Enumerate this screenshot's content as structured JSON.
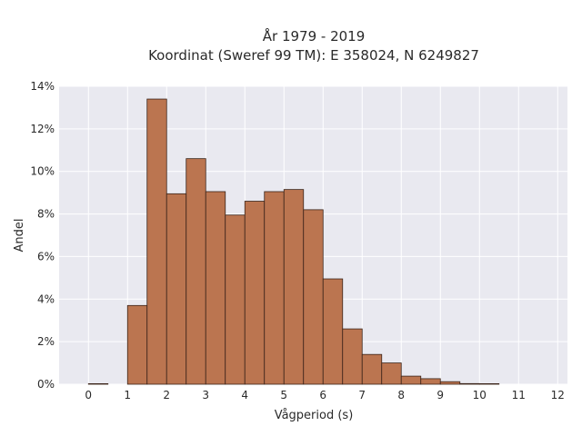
{
  "chart_data": {
    "type": "bar",
    "title_line1": "År 1979 - 2019",
    "title_line2": "Koordinat (Sweref 99 TM): E 358024, N 6249827",
    "xlabel": "Vågperiod (s)",
    "ylabel": "Andel",
    "xlim": [
      -0.75,
      12.25
    ],
    "ylim": [
      0,
      14
    ],
    "x_ticks": [
      0,
      1,
      2,
      3,
      4,
      5,
      6,
      7,
      8,
      9,
      10,
      11,
      12
    ],
    "x_tick_labels": [
      "0",
      "1",
      "2",
      "3",
      "4",
      "5",
      "6",
      "7",
      "8",
      "9",
      "10",
      "11",
      "12"
    ],
    "y_ticks": [
      0,
      2,
      4,
      6,
      8,
      10,
      12,
      14
    ],
    "y_tick_labels": [
      "0%",
      "2%",
      "4%",
      "6%",
      "8%",
      "10%",
      "12%",
      "14%"
    ],
    "bin_width": 0.5,
    "bins": [
      {
        "x0": 0.0,
        "value": 0.02
      },
      {
        "x0": 0.5,
        "value": 0.0
      },
      {
        "x0": 1.0,
        "value": 3.7
      },
      {
        "x0": 1.5,
        "value": 13.4
      },
      {
        "x0": 2.0,
        "value": 8.95
      },
      {
        "x0": 2.5,
        "value": 10.6
      },
      {
        "x0": 3.0,
        "value": 9.05
      },
      {
        "x0": 3.5,
        "value": 7.95
      },
      {
        "x0": 4.0,
        "value": 8.6
      },
      {
        "x0": 4.5,
        "value": 9.05
      },
      {
        "x0": 5.0,
        "value": 9.15
      },
      {
        "x0": 5.5,
        "value": 8.2
      },
      {
        "x0": 6.0,
        "value": 4.95
      },
      {
        "x0": 6.5,
        "value": 2.6
      },
      {
        "x0": 7.0,
        "value": 1.4
      },
      {
        "x0": 7.5,
        "value": 1.0
      },
      {
        "x0": 8.0,
        "value": 0.38
      },
      {
        "x0": 8.5,
        "value": 0.26
      },
      {
        "x0": 9.0,
        "value": 0.12
      },
      {
        "x0": 9.5,
        "value": 0.03
      },
      {
        "x0": 10.0,
        "value": 0.01
      }
    ],
    "grid": true,
    "colors": {
      "bar_fill": "#bb7550",
      "bar_edge": "#3a2318",
      "plot_bg": "#e9e9f0",
      "grid": "#ffffff"
    }
  }
}
